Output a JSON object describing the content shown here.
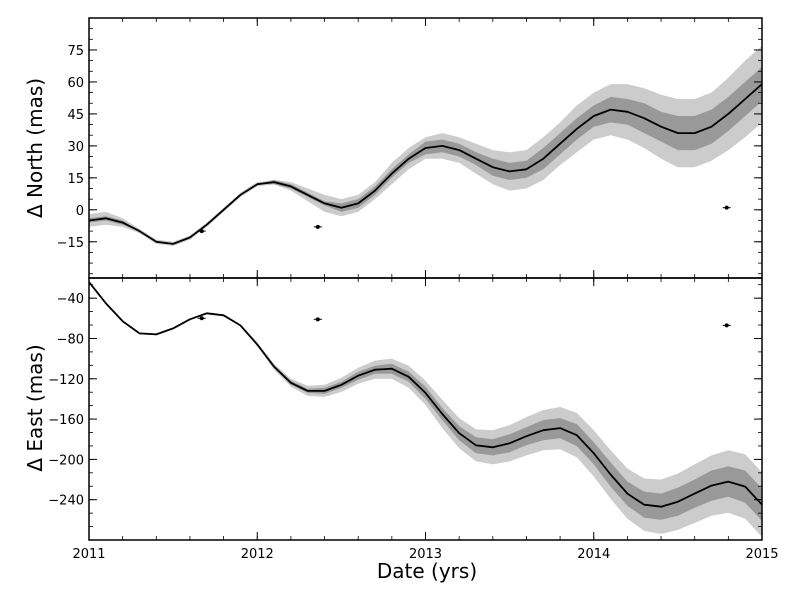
{
  "chart_data": {
    "type": "line",
    "shared_x": {
      "xlabel": "Date (yrs)",
      "xlim": [
        2011,
        2015
      ],
      "xticks": [
        2011,
        2012,
        2013,
        2014,
        2015
      ]
    },
    "panels": [
      {
        "id": "north",
        "ylabel": "Δ North (mas)",
        "ylim": [
          -32,
          90
        ],
        "yticks": [
          -15,
          0,
          15,
          30,
          45,
          60,
          75
        ],
        "series": [
          {
            "role": "model-median",
            "x": [
              2011.0,
              2011.1,
              2011.2,
              2011.3,
              2011.4,
              2011.5,
              2011.6,
              2011.7,
              2011.8,
              2011.9,
              2012.0,
              2012.1,
              2012.2,
              2012.3,
              2012.4,
              2012.5,
              2012.6,
              2012.7,
              2012.8,
              2012.9,
              2013.0,
              2013.1,
              2013.2,
              2013.3,
              2013.4,
              2013.5,
              2013.6,
              2013.7,
              2013.8,
              2013.9,
              2014.0,
              2014.1,
              2014.2,
              2014.3,
              2014.4,
              2014.5,
              2014.6,
              2014.7,
              2014.8,
              2014.9,
              2015.0
            ],
            "y": [
              -5,
              -4,
              -6,
              -10,
              -15,
              -16,
              -13,
              -7,
              0,
              7,
              12,
              13,
              11,
              7,
              3,
              1,
              3,
              9,
              17,
              24,
              29,
              30,
              28,
              24,
              20,
              18,
              19,
              24,
              31,
              38,
              44,
              47,
              46,
              43,
              39,
              36,
              36,
              39,
              45,
              52,
              59
            ]
          }
        ],
        "bands": [
          {
            "role": "outer-band",
            "x": [
              2011.0,
              2011.1,
              2011.2,
              2011.3,
              2011.4,
              2011.5,
              2011.6,
              2011.7,
              2011.8,
              2011.9,
              2012.0,
              2012.1,
              2012.2,
              2012.3,
              2012.4,
              2012.5,
              2012.6,
              2012.7,
              2012.8,
              2012.9,
              2013.0,
              2013.1,
              2013.2,
              2013.3,
              2013.4,
              2013.5,
              2013.6,
              2013.7,
              2013.8,
              2013.9,
              2014.0,
              2014.1,
              2014.2,
              2014.3,
              2014.4,
              2014.5,
              2014.6,
              2014.7,
              2014.8,
              2014.9,
              2015.0
            ],
            "lower": [
              -8,
              -7,
              -8,
              -11,
              -16,
              -17,
              -14,
              -8,
              -1,
              6,
              11,
              12,
              9,
              4,
              -1,
              -3,
              -1,
              5,
              12,
              19,
              24,
              24,
              22,
              17,
              12,
              9,
              10,
              14,
              21,
              27,
              33,
              35,
              33,
              29,
              24,
              20,
              20,
              23,
              28,
              34,
              41
            ],
            "upper": [
              -2,
              -1,
              -4,
              -9,
              -14,
              -15,
              -12,
              -6,
              1,
              8,
              13,
              14,
              13,
              10,
              7,
              5,
              7,
              13,
              22,
              29,
              34,
              36,
              34,
              31,
              28,
              27,
              28,
              34,
              41,
              49,
              55,
              59,
              59,
              57,
              54,
              52,
              52,
              55,
              62,
              70,
              77
            ]
          },
          {
            "role": "inner-band",
            "x": [
              2011.0,
              2011.1,
              2011.2,
              2011.3,
              2011.4,
              2011.5,
              2011.6,
              2011.7,
              2011.8,
              2011.9,
              2012.0,
              2012.1,
              2012.2,
              2012.3,
              2012.4,
              2012.5,
              2012.6,
              2012.7,
              2012.8,
              2012.9,
              2013.0,
              2013.1,
              2013.2,
              2013.3,
              2013.4,
              2013.5,
              2013.6,
              2013.7,
              2013.8,
              2013.9,
              2014.0,
              2014.1,
              2014.2,
              2014.3,
              2014.4,
              2014.5,
              2014.6,
              2014.7,
              2014.8,
              2014.9,
              2015.0
            ],
            "lower": [
              -6,
              -5,
              -7,
              -10,
              -15,
              -16,
              -13,
              -7,
              0,
              7,
              12,
              12,
              10,
              6,
              2,
              -1,
              1,
              7,
              15,
              22,
              26,
              27,
              25,
              21,
              16,
              14,
              15,
              19,
              26,
              33,
              39,
              41,
              40,
              36,
              32,
              28,
              28,
              31,
              37,
              44,
              51
            ],
            "upper": [
              -4,
              -3,
              -5,
              -10,
              -15,
              -16,
              -13,
              -7,
              0,
              7,
              12,
              14,
              12,
              8,
              4,
              3,
              5,
              11,
              19,
              26,
              32,
              33,
              31,
              27,
              24,
              22,
              23,
              29,
              36,
              43,
              49,
              53,
              52,
              50,
              46,
              44,
              44,
              47,
              53,
              60,
              67
            ]
          }
        ],
        "points": [
          {
            "x": 2011.67,
            "y": -10
          },
          {
            "x": 2012.36,
            "y": -8
          },
          {
            "x": 2014.79,
            "y": 1
          }
        ]
      },
      {
        "id": "east",
        "ylabel": "Δ East (mas)",
        "ylim": [
          -280,
          -20
        ],
        "yticks": [
          -240,
          -200,
          -160,
          -120,
          -80,
          -40
        ],
        "series": [
          {
            "role": "model-median",
            "x": [
              2011.0,
              2011.1,
              2011.2,
              2011.3,
              2011.4,
              2011.5,
              2011.6,
              2011.7,
              2011.8,
              2011.9,
              2012.0,
              2012.1,
              2012.2,
              2012.3,
              2012.4,
              2012.5,
              2012.6,
              2012.7,
              2012.8,
              2012.9,
              2013.0,
              2013.1,
              2013.2,
              2013.3,
              2013.4,
              2013.5,
              2013.6,
              2013.7,
              2013.8,
              2013.9,
              2014.0,
              2014.1,
              2014.2,
              2014.3,
              2014.4,
              2014.5,
              2014.6,
              2014.7,
              2014.8,
              2014.9,
              2015.0
            ],
            "y": [
              -24,
              -45,
              -63,
              -75,
              -76,
              -70,
              -61,
              -55,
              -57,
              -67,
              -86,
              -108,
              -124,
              -132,
              -132,
              -126,
              -117,
              -111,
              -110,
              -118,
              -134,
              -155,
              -174,
              -186,
              -188,
              -184,
              -177,
              -171,
              -169,
              -176,
              -194,
              -215,
              -234,
              -245,
              -247,
              -242,
              -234,
              -226,
              -222,
              -227,
              -245
            ]
          }
        ],
        "bands": [
          {
            "role": "outer-band",
            "x": [
              2011.0,
              2011.1,
              2011.2,
              2011.3,
              2011.4,
              2011.5,
              2011.6,
              2011.7,
              2011.8,
              2011.9,
              2012.0,
              2012.1,
              2012.2,
              2012.3,
              2012.4,
              2012.5,
              2012.6,
              2012.7,
              2012.8,
              2012.9,
              2013.0,
              2013.1,
              2013.2,
              2013.3,
              2013.4,
              2013.5,
              2013.6,
              2013.7,
              2013.8,
              2013.9,
              2014.0,
              2014.1,
              2014.2,
              2014.3,
              2014.4,
              2014.5,
              2014.6,
              2014.7,
              2014.8,
              2014.9,
              2015.0
            ],
            "lower": [
              -25,
              -46,
              -64,
              -76,
              -77,
              -71,
              -62,
              -56,
              -58,
              -68,
              -88,
              -111,
              -128,
              -137,
              -138,
              -133,
              -125,
              -120,
              -120,
              -129,
              -146,
              -169,
              -189,
              -202,
              -205,
              -202,
              -196,
              -191,
              -190,
              -198,
              -217,
              -239,
              -259,
              -271,
              -274,
              -270,
              -263,
              -256,
              -253,
              -259,
              -277
            ],
            "upper": [
              -23,
              -44,
              -62,
              -74,
              -75,
              -69,
              -60,
              -54,
              -56,
              -66,
              -84,
              -105,
              -120,
              -127,
              -126,
              -119,
              -109,
              -102,
              -100,
              -107,
              -122,
              -141,
              -159,
              -170,
              -171,
              -166,
              -158,
              -151,
              -148,
              -154,
              -171,
              -191,
              -209,
              -219,
              -220,
              -214,
              -205,
              -196,
              -191,
              -195,
              -213
            ]
          },
          {
            "role": "inner-band",
            "x": [
              2011.0,
              2011.1,
              2011.2,
              2011.3,
              2011.4,
              2011.5,
              2011.6,
              2011.7,
              2011.8,
              2011.9,
              2012.0,
              2012.1,
              2012.2,
              2012.3,
              2012.4,
              2012.5,
              2012.6,
              2012.7,
              2012.8,
              2012.9,
              2013.0,
              2013.1,
              2013.2,
              2013.3,
              2013.4,
              2013.5,
              2013.6,
              2013.7,
              2013.8,
              2013.9,
              2014.0,
              2014.1,
              2014.2,
              2014.3,
              2014.4,
              2014.5,
              2014.6,
              2014.7,
              2014.8,
              2014.9,
              2015.0
            ],
            "lower": [
              -24,
              -45,
              -63,
              -75,
              -76,
              -70,
              -61,
              -55,
              -57,
              -67,
              -87,
              -109,
              -126,
              -134,
              -135,
              -129,
              -121,
              -115,
              -115,
              -123,
              -140,
              -161,
              -181,
              -194,
              -196,
              -193,
              -186,
              -181,
              -179,
              -187,
              -205,
              -227,
              -246,
              -258,
              -260,
              -256,
              -248,
              -241,
              -237,
              -243,
              -261
            ],
            "upper": [
              -24,
              -45,
              -63,
              -75,
              -76,
              -70,
              -61,
              -55,
              -57,
              -67,
              -85,
              -107,
              -122,
              -130,
              -129,
              -123,
              -113,
              -107,
              -105,
              -113,
              -128,
              -149,
              -167,
              -178,
              -180,
              -175,
              -168,
              -161,
              -159,
              -165,
              -183,
              -203,
              -222,
              -232,
              -234,
              -228,
              -220,
              -211,
              -207,
              -211,
              -229
            ]
          }
        ],
        "points": [
          {
            "x": 2011.67,
            "y": -60
          },
          {
            "x": 2012.36,
            "y": -61
          },
          {
            "x": 2014.79,
            "y": -67
          }
        ]
      }
    ],
    "colors": {
      "outer_band": "#cccccc",
      "inner_band": "#999999",
      "line": "#000000",
      "points": "#000000"
    }
  }
}
